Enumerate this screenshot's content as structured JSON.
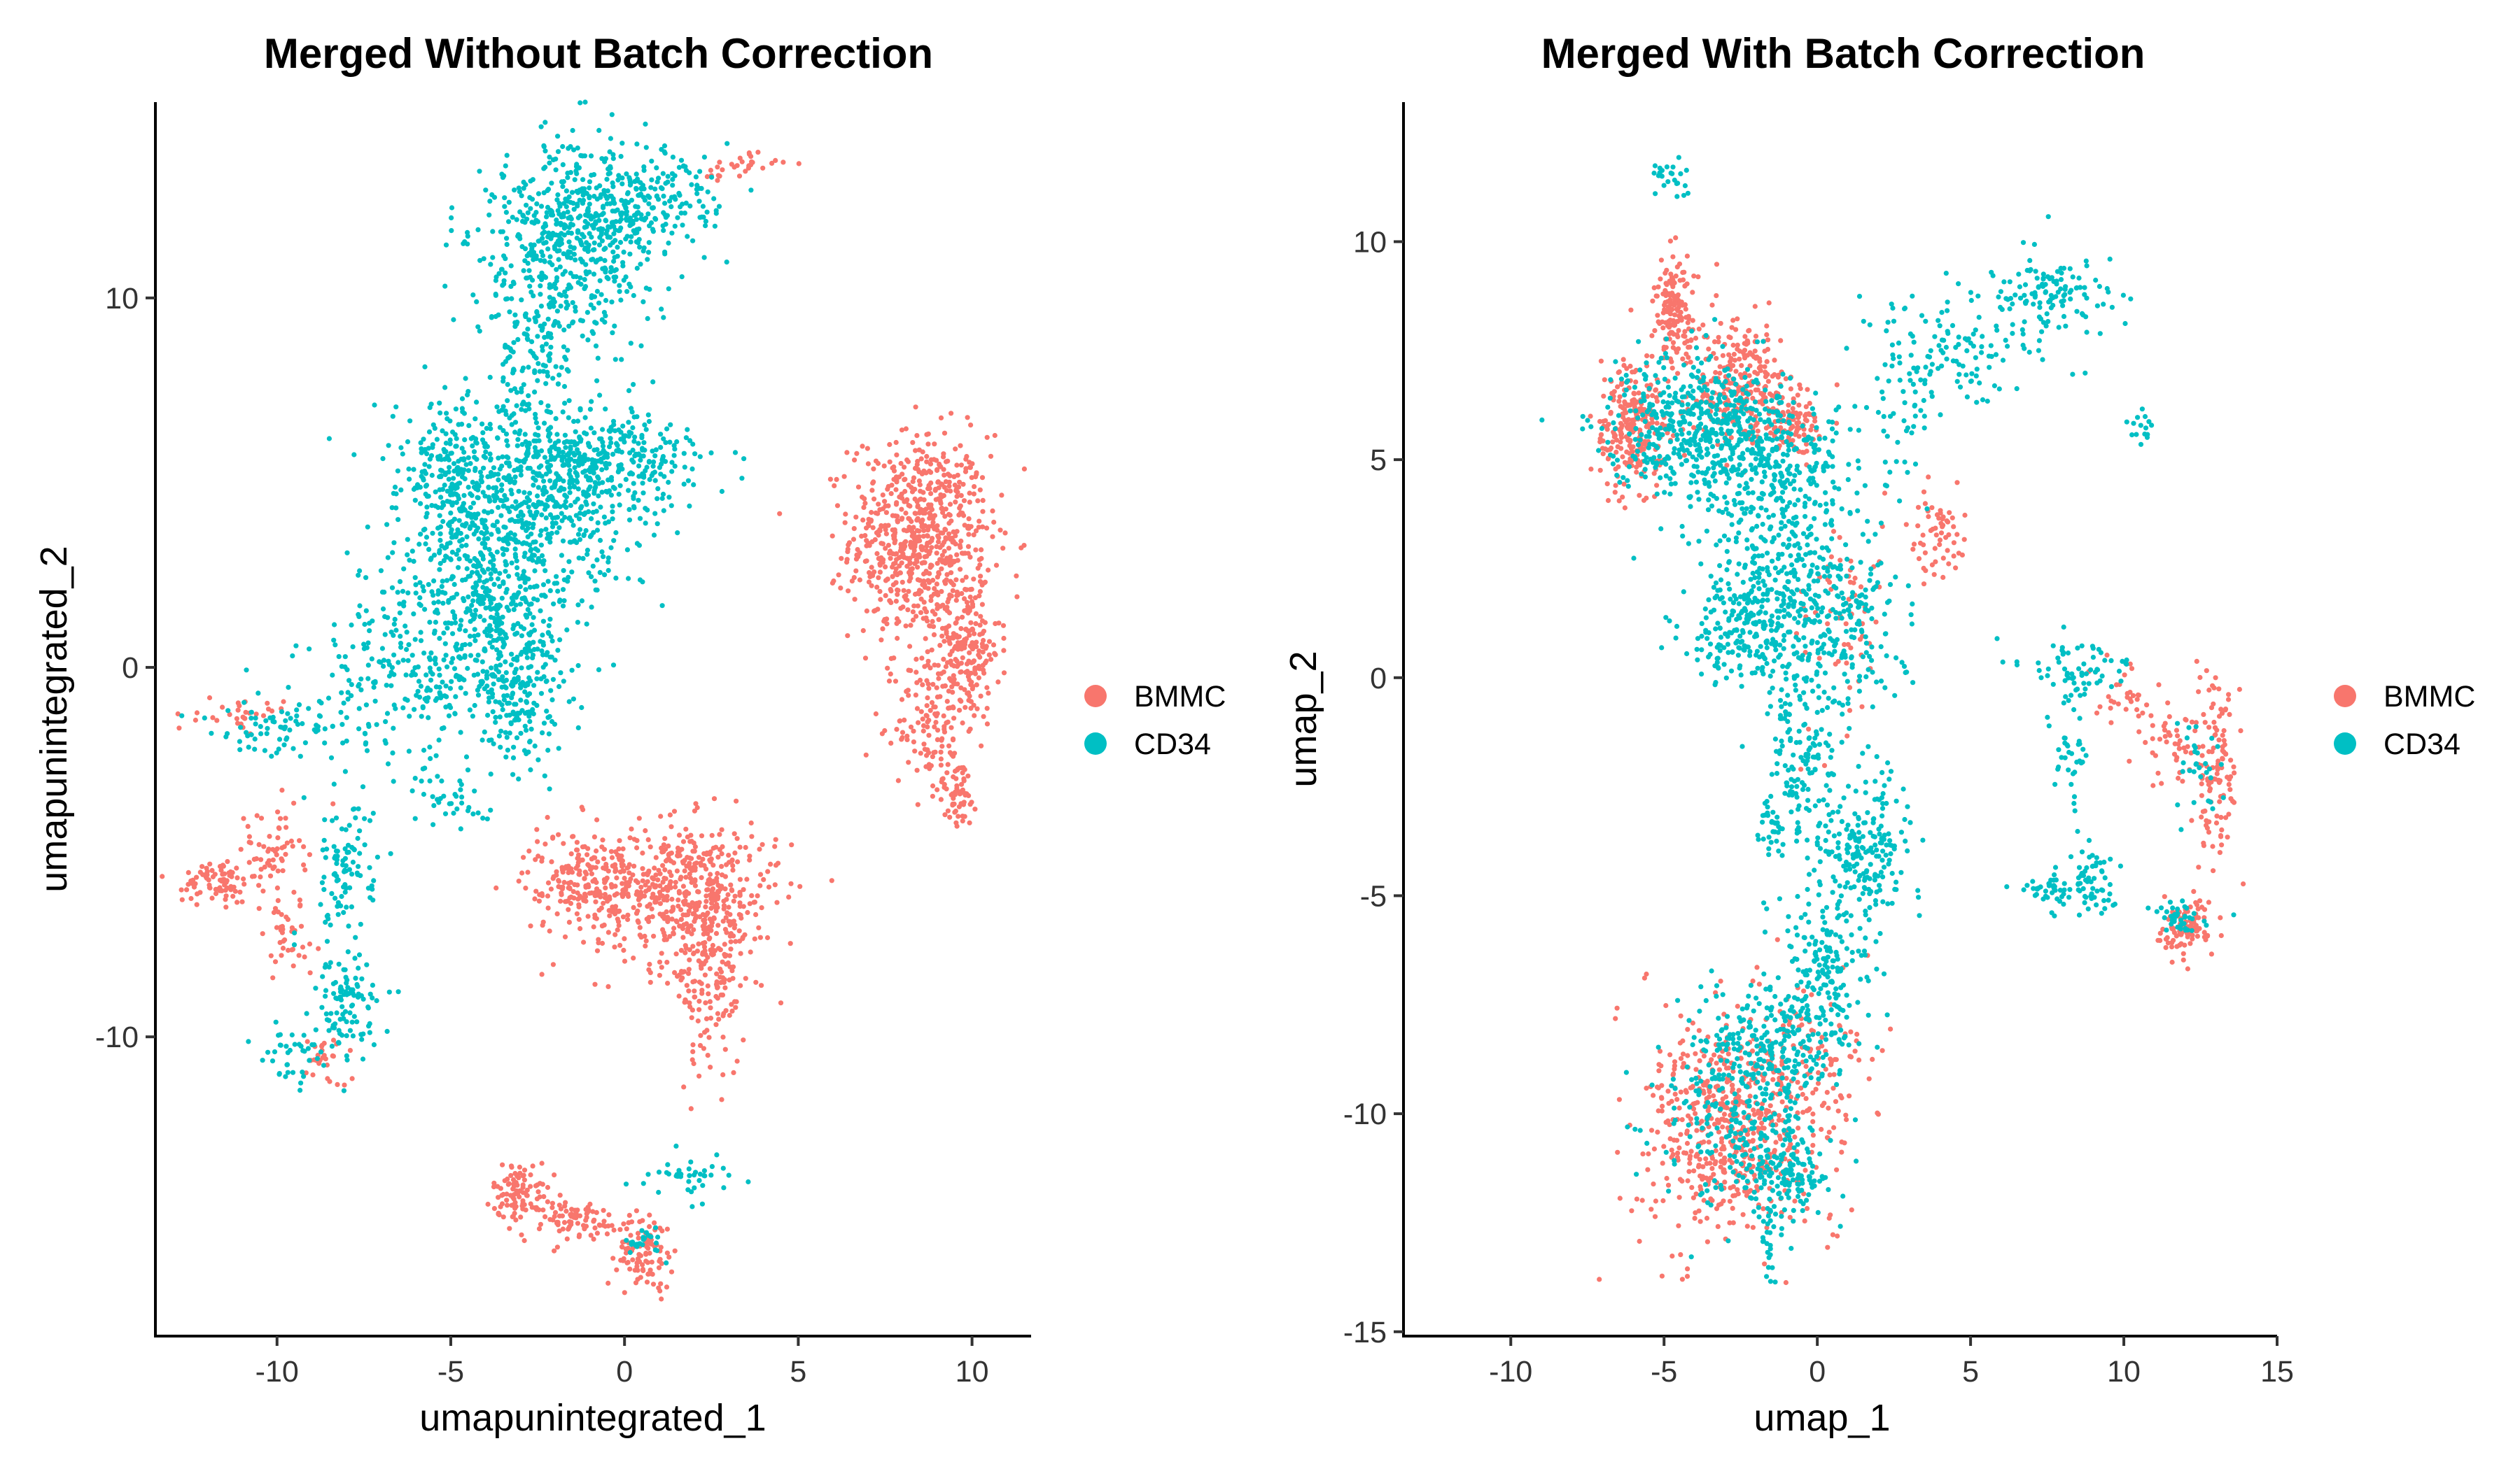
{
  "chart_data": [
    {
      "type": "scatter",
      "title": "Merged Without Batch Correction",
      "xlabel": "umapunintegrated_1",
      "ylabel": "umapunintegrated_2",
      "xlim": [
        -13.5,
        11.7
      ],
      "ylim": [
        -18.1,
        15.3
      ],
      "xticks": [
        -10,
        -5,
        0,
        5,
        10
      ],
      "xtick_labels": [
        "-10",
        "-5",
        "0",
        "5",
        "10"
      ],
      "yticks": [
        -10,
        0,
        10
      ],
      "ytick_labels": [
        "-10",
        "0",
        "10"
      ],
      "legend": [
        {
          "label": "BMMC",
          "color": "#F8766D"
        },
        {
          "label": "CD34",
          "color": "#00BFC4"
        }
      ],
      "legend_position": "right",
      "series": [
        {
          "name": "BMMC",
          "color": "#F8766D",
          "clusters": [
            {
              "cx": 8.5,
              "cy": 3.5,
              "sx": 1.0,
              "sy": 1.4,
              "n": 700
            },
            {
              "cx": 9.8,
              "cy": 0.5,
              "sx": 0.5,
              "sy": 1.0,
              "n": 200
            },
            {
              "cx": 8.8,
              "cy": -1.5,
              "sx": 0.5,
              "sy": 1.0,
              "n": 120
            },
            {
              "cx": 9.6,
              "cy": -3.4,
              "sx": 0.3,
              "sy": 0.5,
              "n": 60
            },
            {
              "cx": 1.8,
              "cy": -6.2,
              "sx": 1.3,
              "sy": 1.0,
              "n": 450
            },
            {
              "cx": 2.5,
              "cy": -8.5,
              "sx": 0.5,
              "sy": 1.3,
              "n": 150
            },
            {
              "cx": -1.3,
              "cy": -5.8,
              "sx": 0.8,
              "sy": 0.7,
              "n": 150
            },
            {
              "cx": 0.5,
              "cy": -5.5,
              "sx": 1.5,
              "sy": 0.6,
              "n": 120
            },
            {
              "cx": -3.0,
              "cy": -14.2,
              "sx": 0.4,
              "sy": 0.4,
              "n": 100
            },
            {
              "cx": -1.5,
              "cy": -15.0,
              "sx": 0.8,
              "sy": 0.3,
              "n": 80
            },
            {
              "cx": 0.6,
              "cy": -15.8,
              "sx": 0.4,
              "sy": 0.5,
              "n": 100
            },
            {
              "cx": -11.7,
              "cy": -5.8,
              "sx": 0.5,
              "sy": 0.3,
              "n": 80
            },
            {
              "cx": -10.2,
              "cy": -5.0,
              "sx": 0.5,
              "sy": 0.6,
              "n": 60
            },
            {
              "cx": -9.7,
              "cy": -7.3,
              "sx": 0.6,
              "sy": 0.6,
              "n": 40
            },
            {
              "cx": -8.6,
              "cy": -10.6,
              "sx": 0.3,
              "sy": 0.4,
              "n": 30
            },
            {
              "cx": -11.0,
              "cy": -1.3,
              "sx": 0.6,
              "sy": 0.2,
              "n": 30
            },
            {
              "cx": 3.2,
              "cy": 13.6,
              "sx": 0.6,
              "sy": 0.2,
              "n": 30
            }
          ]
        },
        {
          "name": "CD34",
          "color": "#00BFC4",
          "clusters": [
            {
              "cx": -1.5,
              "cy": 11.5,
              "sx": 1.3,
              "sy": 1.3,
              "n": 550
            },
            {
              "cx": 0.5,
              "cy": 12.6,
              "sx": 1.2,
              "sy": 0.7,
              "n": 200
            },
            {
              "cx": -2.6,
              "cy": 8.3,
              "sx": 0.6,
              "sy": 1.1,
              "n": 130
            },
            {
              "cx": -1.0,
              "cy": 5.5,
              "sx": 1.5,
              "sy": 0.8,
              "n": 450
            },
            {
              "cx": -3.3,
              "cy": 4.0,
              "sx": 1.5,
              "sy": 1.4,
              "n": 500
            },
            {
              "cx": -4.0,
              "cy": 1.5,
              "sx": 1.5,
              "sy": 1.4,
              "n": 400
            },
            {
              "cx": -5.0,
              "cy": 5.5,
              "sx": 0.8,
              "sy": 1.0,
              "n": 150
            },
            {
              "cx": -3.0,
              "cy": -1.0,
              "sx": 0.6,
              "sy": 1.0,
              "n": 150
            },
            {
              "cx": -6.0,
              "cy": -0.3,
              "sx": 1.6,
              "sy": 1.0,
              "n": 200
            },
            {
              "cx": -9.5,
              "cy": -1.5,
              "sx": 1.2,
              "sy": 0.4,
              "n": 80
            },
            {
              "cx": -5.0,
              "cy": -3.5,
              "sx": 0.6,
              "sy": 0.5,
              "n": 40
            },
            {
              "cx": -8.0,
              "cy": -5.5,
              "sx": 0.5,
              "sy": 1.0,
              "n": 100
            },
            {
              "cx": -8.0,
              "cy": -9.0,
              "sx": 0.5,
              "sy": 0.8,
              "n": 100
            },
            {
              "cx": -9.5,
              "cy": -10.5,
              "sx": 0.6,
              "sy": 0.4,
              "n": 40
            },
            {
              "cx": 1.9,
              "cy": -13.8,
              "sx": 0.7,
              "sy": 0.3,
              "n": 40
            },
            {
              "cx": 0.5,
              "cy": -15.6,
              "sx": 0.3,
              "sy": 0.2,
              "n": 25
            }
          ]
        }
      ]
    },
    {
      "type": "scatter",
      "title": "Merged With Batch Correction",
      "xlabel": "umap_1",
      "ylabel": "umap_2",
      "xlim": [
        -13.5,
        15.0
      ],
      "ylim": [
        -15.1,
        13.2
      ],
      "xticks": [
        -10,
        -5,
        0,
        5,
        10,
        15
      ],
      "xtick_labels": [
        "-10",
        "-5",
        "0",
        "5",
        "10",
        "15"
      ],
      "yticks": [
        -15,
        -10,
        -5,
        0,
        5,
        10
      ],
      "ytick_labels": [
        "-15",
        "-10",
        "-5",
        "0",
        "5",
        "10"
      ],
      "legend": [
        {
          "label": "BMMC",
          "color": "#F8766D"
        },
        {
          "label": "CD34",
          "color": "#00BFC4"
        }
      ],
      "legend_position": "right",
      "series": [
        {
          "name": "BMMC",
          "color": "#F8766D",
          "clusters": [
            {
              "cx": -4.7,
              "cy": 8.5,
              "sx": 0.3,
              "sy": 0.6,
              "n": 150
            },
            {
              "cx": -6.0,
              "cy": 5.8,
              "sx": 0.6,
              "sy": 0.8,
              "n": 250
            },
            {
              "cx": -2.5,
              "cy": 6.8,
              "sx": 0.8,
              "sy": 0.8,
              "n": 250
            },
            {
              "cx": -0.8,
              "cy": 5.8,
              "sx": 0.5,
              "sy": 0.3,
              "n": 100
            },
            {
              "cx": 3.8,
              "cy": 3.3,
              "sx": 0.5,
              "sy": 0.6,
              "n": 60
            },
            {
              "cx": -3.0,
              "cy": -10.3,
              "sx": 1.4,
              "sy": 1.3,
              "n": 550
            },
            {
              "cx": 0.0,
              "cy": -9.0,
              "sx": 1.0,
              "sy": 1.0,
              "n": 100
            },
            {
              "cx": 12.0,
              "cy": -5.8,
              "sx": 0.4,
              "sy": 0.3,
              "n": 100
            },
            {
              "cx": 13.0,
              "cy": -2.0,
              "sx": 0.4,
              "sy": 1.2,
              "n": 120
            },
            {
              "cx": 11.5,
              "cy": -1.5,
              "sx": 0.5,
              "sy": 0.5,
              "n": 40
            },
            {
              "cx": 10.0,
              "cy": -0.5,
              "sx": 0.5,
              "sy": 0.4,
              "n": 30
            },
            {
              "cx": 1.0,
              "cy": 1.0,
              "sx": 0.8,
              "sy": 1.2,
              "n": 60
            }
          ]
        },
        {
          "name": "CD34",
          "color": "#00BFC4",
          "clusters": [
            {
              "cx": -4.8,
              "cy": 11.5,
              "sx": 0.3,
              "sy": 0.3,
              "n": 25
            },
            {
              "cx": -4.0,
              "cy": 5.8,
              "sx": 1.4,
              "sy": 0.8,
              "n": 450
            },
            {
              "cx": -1.5,
              "cy": 5.0,
              "sx": 1.2,
              "sy": 0.8,
              "n": 250
            },
            {
              "cx": 4.5,
              "cy": 7.5,
              "sx": 1.5,
              "sy": 0.6,
              "n": 120
            },
            {
              "cx": 7.5,
              "cy": 8.8,
              "sx": 1.0,
              "sy": 0.5,
              "n": 120
            },
            {
              "cx": 2.9,
              "cy": 6.0,
              "sx": 0.5,
              "sy": 0.9,
              "n": 40
            },
            {
              "cx": 10.5,
              "cy": 5.8,
              "sx": 0.2,
              "sy": 0.2,
              "n": 15
            },
            {
              "cx": -1.0,
              "cy": 2.5,
              "sx": 1.3,
              "sy": 1.2,
              "n": 350
            },
            {
              "cx": -2.5,
              "cy": 1.0,
              "sx": 0.9,
              "sy": 0.6,
              "n": 150
            },
            {
              "cx": 1.0,
              "cy": 1.0,
              "sx": 1.0,
              "sy": 1.0,
              "n": 150
            },
            {
              "cx": -0.5,
              "cy": -1.5,
              "sx": 0.6,
              "sy": 1.2,
              "n": 150
            },
            {
              "cx": 1.5,
              "cy": -4.0,
              "sx": 0.8,
              "sy": 0.8,
              "n": 200
            },
            {
              "cx": 0.3,
              "cy": -6.5,
              "sx": 0.8,
              "sy": 0.8,
              "n": 150
            },
            {
              "cx": -0.8,
              "cy": -8.3,
              "sx": 1.0,
              "sy": 0.6,
              "n": 150
            },
            {
              "cx": -2.5,
              "cy": -9.5,
              "sx": 1.3,
              "sy": 1.2,
              "n": 300
            },
            {
              "cx": -1.0,
              "cy": -11.5,
              "sx": 0.8,
              "sy": 0.5,
              "n": 150
            },
            {
              "cx": -1.5,
              "cy": -13.0,
              "sx": 0.2,
              "sy": 0.4,
              "n": 20
            },
            {
              "cx": 8.5,
              "cy": 0.3,
              "sx": 1.0,
              "sy": 0.3,
              "n": 60
            },
            {
              "cx": 9.0,
              "cy": -4.7,
              "sx": 0.4,
              "sy": 0.4,
              "n": 60
            },
            {
              "cx": 7.5,
              "cy": -4.9,
              "sx": 0.4,
              "sy": 0.2,
              "n": 40
            },
            {
              "cx": 11.8,
              "cy": -5.5,
              "sx": 0.4,
              "sy": 0.2,
              "n": 40
            },
            {
              "cx": 12.5,
              "cy": -2.0,
              "sx": 0.4,
              "sy": 0.6,
              "n": 30
            },
            {
              "cx": 8.3,
              "cy": -1.8,
              "sx": 0.3,
              "sy": 1.0,
              "n": 40
            },
            {
              "cx": -1.5,
              "cy": -3.3,
              "sx": 0.3,
              "sy": 0.3,
              "n": 30
            }
          ]
        }
      ]
    }
  ]
}
